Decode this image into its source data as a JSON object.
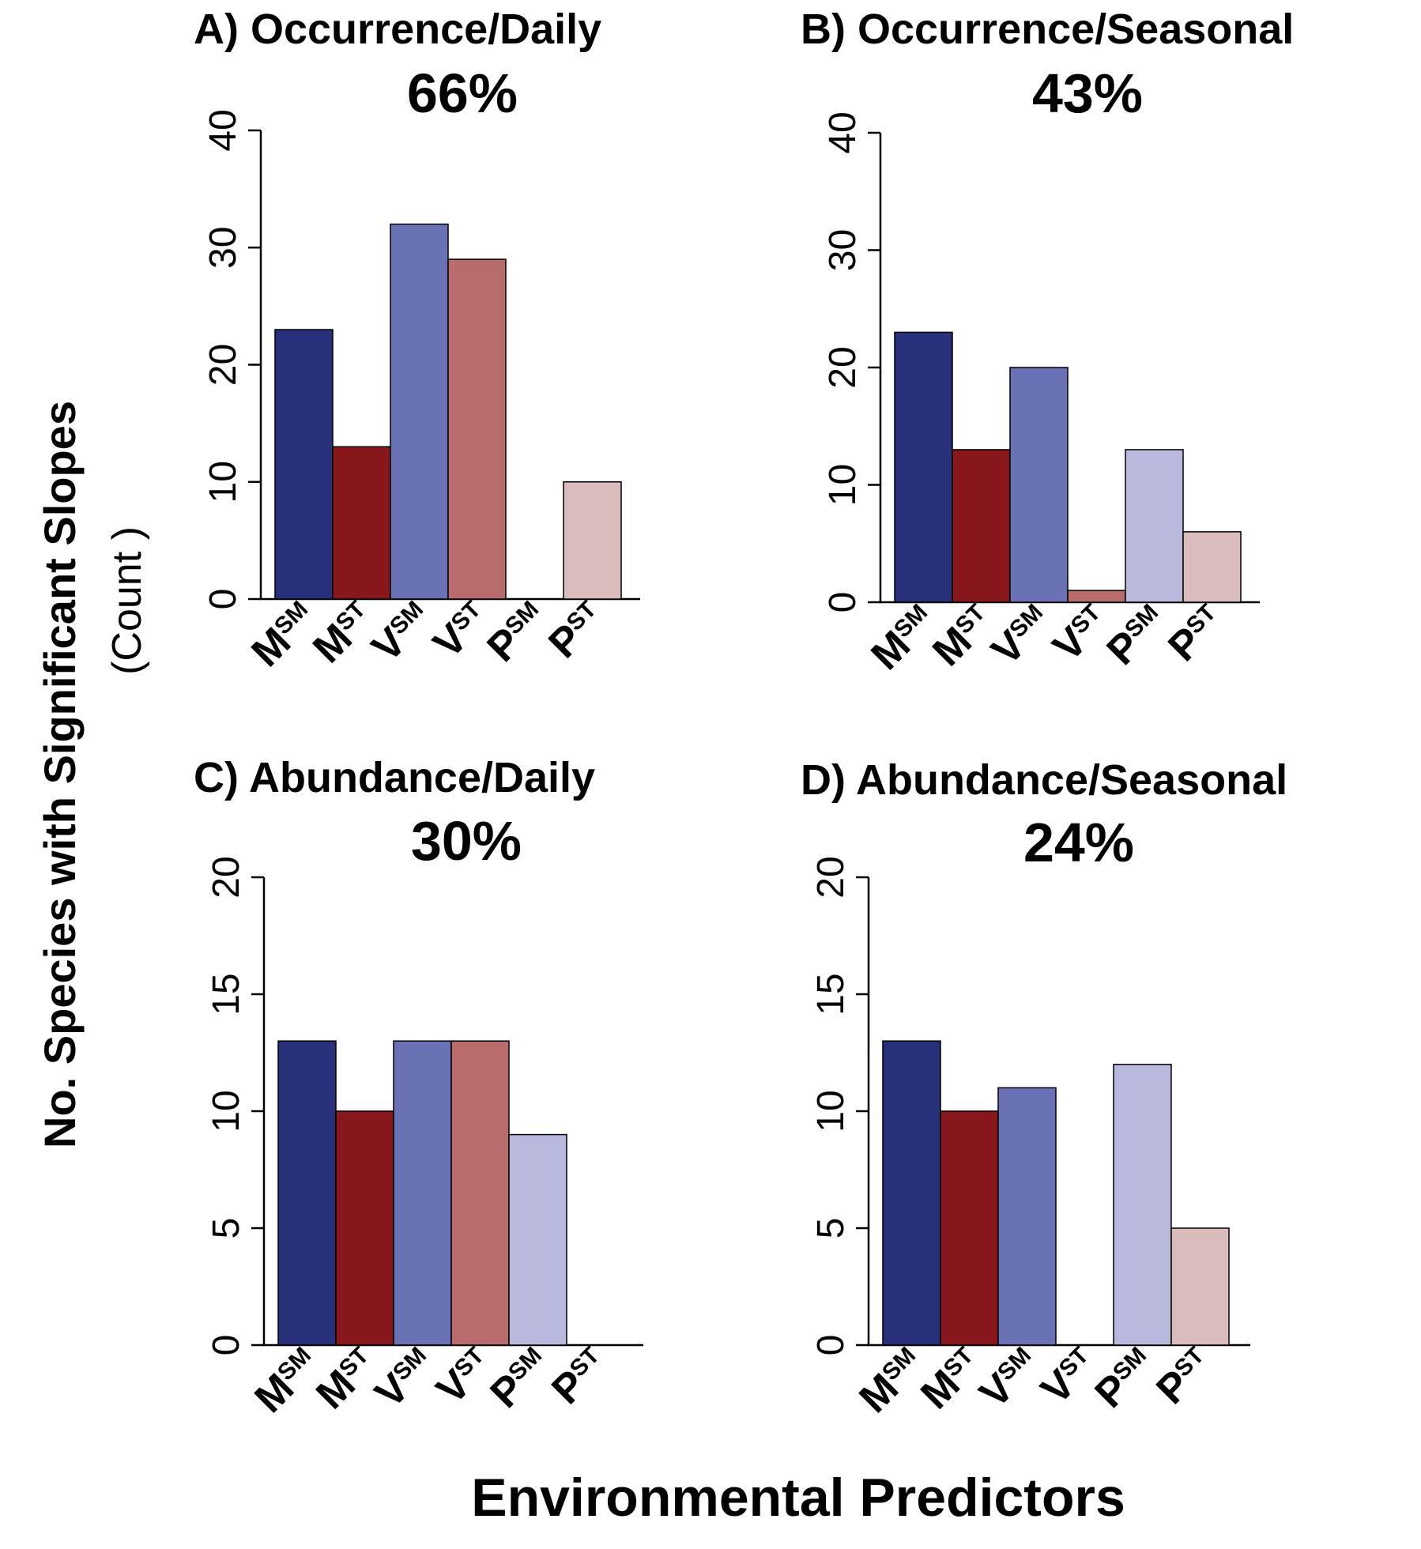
{
  "figure": {
    "ylabel": "No. Species with Significant Slopes",
    "ylabel_sub": "(Count )",
    "xlabel": "Environmental Predictors"
  },
  "colors": {
    "M_SM": "#29307a",
    "M_ST": "#88171b",
    "V_SM": "#6a71b4",
    "V_ST": "#b86b6b",
    "P_SM": "#b8b9dc",
    "P_ST": "#dbbcbc"
  },
  "chart_data": [
    {
      "type": "bar",
      "title": "A) Occurrence/Daily",
      "subtitle": "66%",
      "categories": [
        {
          "main": "M",
          "sub": "SM",
          "key": "M_SM"
        },
        {
          "main": "M",
          "sub": "ST",
          "key": "M_ST"
        },
        {
          "main": "V",
          "sub": "SM",
          "key": "V_SM"
        },
        {
          "main": "V",
          "sub": "ST",
          "key": "V_ST"
        },
        {
          "main": "P",
          "sub": "SM",
          "key": "P_SM"
        },
        {
          "main": "P",
          "sub": "ST",
          "key": "P_ST"
        }
      ],
      "values": [
        23,
        13,
        32,
        29,
        0,
        10
      ],
      "ylim": [
        0,
        40
      ],
      "yticks": [
        "0",
        "10",
        "20",
        "30",
        "40"
      ],
      "grid": false
    },
    {
      "type": "bar",
      "title": "B) Occurrence/Seasonal",
      "subtitle": "43%",
      "categories": [
        {
          "main": "M",
          "sub": "SM",
          "key": "M_SM"
        },
        {
          "main": "M",
          "sub": "ST",
          "key": "M_ST"
        },
        {
          "main": "V",
          "sub": "SM",
          "key": "V_SM"
        },
        {
          "main": "V",
          "sub": "ST",
          "key": "V_ST"
        },
        {
          "main": "P",
          "sub": "SM",
          "key": "P_SM"
        },
        {
          "main": "P",
          "sub": "ST",
          "key": "P_ST"
        }
      ],
      "values": [
        23,
        13,
        20,
        1,
        13,
        6
      ],
      "ylim": [
        0,
        40
      ],
      "yticks": [
        "0",
        "10",
        "20",
        "30",
        "40"
      ],
      "grid": false
    },
    {
      "type": "bar",
      "title": "C) Abundance/Daily",
      "subtitle": "30%",
      "categories": [
        {
          "main": "M",
          "sub": "SM",
          "key": "M_SM"
        },
        {
          "main": "M",
          "sub": "ST",
          "key": "M_ST"
        },
        {
          "main": "V",
          "sub": "SM",
          "key": "V_SM"
        },
        {
          "main": "V",
          "sub": "ST",
          "key": "V_ST"
        },
        {
          "main": "P",
          "sub": "SM",
          "key": "P_SM"
        },
        {
          "main": "P",
          "sub": "ST",
          "key": "P_ST"
        }
      ],
      "values": [
        13,
        10,
        13,
        13,
        9,
        0
      ],
      "ylim": [
        0,
        20
      ],
      "yticks": [
        "0",
        "5",
        "10",
        "15",
        "20"
      ],
      "grid": false
    },
    {
      "type": "bar",
      "title": "D) Abundance/Seasonal",
      "subtitle": "24%",
      "categories": [
        {
          "main": "M",
          "sub": "SM",
          "key": "M_SM"
        },
        {
          "main": "M",
          "sub": "ST",
          "key": "M_ST"
        },
        {
          "main": "V",
          "sub": "SM",
          "key": "V_SM"
        },
        {
          "main": "V",
          "sub": "ST",
          "key": "V_ST"
        },
        {
          "main": "P",
          "sub": "SM",
          "key": "P_SM"
        },
        {
          "main": "P",
          "sub": "ST",
          "key": "P_ST"
        }
      ],
      "values": [
        13,
        10,
        11,
        0,
        12,
        5
      ],
      "ylim": [
        0,
        20
      ],
      "yticks": [
        "0",
        "5",
        "10",
        "15",
        "20"
      ],
      "grid": false
    }
  ]
}
